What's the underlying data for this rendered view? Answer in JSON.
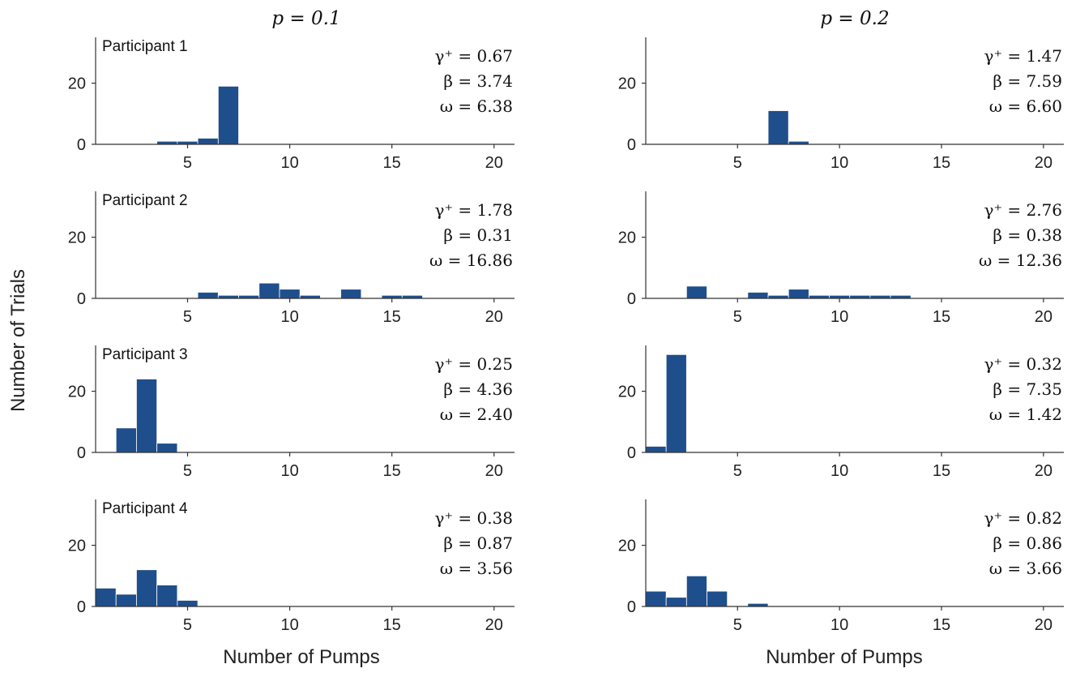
{
  "colors": {
    "bar": "#1f4e8c",
    "axis": "#333333"
  },
  "figure": {
    "ylabel": "Number of Trials",
    "xlabel": "Number of Pumps",
    "columns": [
      "p = 0.1",
      "p = 0.2"
    ]
  },
  "chart_data": [
    {
      "type": "bar",
      "panel": "Participant 1, p = 0.1",
      "title": "Participant 1",
      "column": "p = 0.1",
      "x": [
        4,
        5,
        6,
        7
      ],
      "values": [
        1,
        1,
        2,
        19
      ],
      "params": [
        "γ⁺ = 0.67",
        "β = 3.74",
        "ω = 6.38"
      ],
      "xlim": [
        0.5,
        21
      ],
      "ylim": [
        0,
        35
      ],
      "xticks": [
        5,
        10,
        15,
        20
      ],
      "yticks": [
        0,
        20
      ]
    },
    {
      "type": "bar",
      "panel": "Participant 1, p = 0.2",
      "title": "",
      "column": "p = 0.2",
      "x": [
        7,
        8
      ],
      "values": [
        11,
        1
      ],
      "params": [
        "γ⁺ = 1.47",
        "β = 7.59",
        "ω = 6.60"
      ],
      "xlim": [
        0.5,
        21
      ],
      "ylim": [
        0,
        35
      ],
      "xticks": [
        5,
        10,
        15,
        20
      ],
      "yticks": [
        0,
        20
      ]
    },
    {
      "type": "bar",
      "panel": "Participant 2, p = 0.1",
      "title": "Participant 2",
      "column": "p = 0.1",
      "x": [
        6,
        7,
        8,
        9,
        10,
        11,
        13,
        15,
        16
      ],
      "values": [
        2,
        1,
        1,
        5,
        3,
        1,
        3,
        1,
        1
      ],
      "params": [
        "γ⁺ = 1.78",
        "β = 0.31",
        "ω = 16.86"
      ],
      "xlim": [
        0.5,
        21
      ],
      "ylim": [
        0,
        35
      ],
      "xticks": [
        5,
        10,
        15,
        20
      ],
      "yticks": [
        0,
        20
      ]
    },
    {
      "type": "bar",
      "panel": "Participant 2, p = 0.2",
      "title": "",
      "column": "p = 0.2",
      "x": [
        3,
        6,
        7,
        8,
        9,
        10,
        11,
        12,
        13
      ],
      "values": [
        4,
        2,
        1,
        3,
        1,
        1,
        1,
        1,
        1
      ],
      "params": [
        "γ⁺ = 2.76",
        "β = 0.38",
        "ω = 12.36"
      ],
      "xlim": [
        0.5,
        21
      ],
      "ylim": [
        0,
        35
      ],
      "xticks": [
        5,
        10,
        15,
        20
      ],
      "yticks": [
        0,
        20
      ]
    },
    {
      "type": "bar",
      "panel": "Participant 3, p = 0.1",
      "title": "Participant 3",
      "column": "p = 0.1",
      "x": [
        2,
        3,
        4
      ],
      "values": [
        8,
        24,
        3
      ],
      "params": [
        "γ⁺ = 0.25",
        "β = 4.36",
        "ω = 2.40"
      ],
      "xlim": [
        0.5,
        21
      ],
      "ylim": [
        0,
        35
      ],
      "xticks": [
        5,
        10,
        15,
        20
      ],
      "yticks": [
        0,
        20
      ]
    },
    {
      "type": "bar",
      "panel": "Participant 3, p = 0.2",
      "title": "",
      "column": "p = 0.2",
      "x": [
        1,
        2
      ],
      "values": [
        2,
        32
      ],
      "params": [
        "γ⁺ = 0.32",
        "β = 7.35",
        "ω = 1.42"
      ],
      "xlim": [
        0.5,
        21
      ],
      "ylim": [
        0,
        35
      ],
      "xticks": [
        5,
        10,
        15,
        20
      ],
      "yticks": [
        0,
        20
      ]
    },
    {
      "type": "bar",
      "panel": "Participant 4, p = 0.1",
      "title": "Participant 4",
      "column": "p = 0.1",
      "x": [
        1,
        2,
        3,
        4,
        5
      ],
      "values": [
        6,
        4,
        12,
        7,
        2
      ],
      "params": [
        "γ⁺ = 0.38",
        "β = 0.87",
        "ω = 3.56"
      ],
      "xlim": [
        0.5,
        21
      ],
      "ylim": [
        0,
        35
      ],
      "xticks": [
        5,
        10,
        15,
        20
      ],
      "yticks": [
        0,
        20
      ]
    },
    {
      "type": "bar",
      "panel": "Participant 4, p = 0.2",
      "title": "",
      "column": "p = 0.2",
      "x": [
        1,
        2,
        3,
        4,
        6
      ],
      "values": [
        5,
        3,
        10,
        5,
        1
      ],
      "params": [
        "γ⁺ = 0.82",
        "β = 0.86",
        "ω = 3.66"
      ],
      "xlim": [
        0.5,
        21
      ],
      "ylim": [
        0,
        35
      ],
      "xticks": [
        5,
        10,
        15,
        20
      ],
      "yticks": [
        0,
        20
      ]
    }
  ]
}
